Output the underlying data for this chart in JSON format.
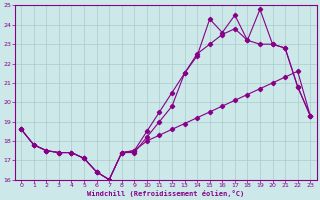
{
  "xlabel": "Windchill (Refroidissement éolien,°C)",
  "bg_color": "#cce8e8",
  "line_color": "#880088",
  "grid_color": "#aacccc",
  "xlim": [
    -0.5,
    23.5
  ],
  "ylim": [
    16,
    25
  ],
  "yticks": [
    16,
    17,
    18,
    19,
    20,
    21,
    22,
    23,
    24,
    25
  ],
  "xticks": [
    0,
    1,
    2,
    3,
    4,
    5,
    6,
    7,
    8,
    9,
    10,
    11,
    12,
    13,
    14,
    15,
    16,
    17,
    18,
    19,
    20,
    21,
    22,
    23
  ],
  "line1_x": [
    0,
    1,
    2,
    3,
    4,
    5,
    6,
    7,
    8,
    9,
    10,
    11,
    12,
    13,
    14,
    15,
    16,
    17,
    18,
    19,
    20,
    21,
    22,
    23
  ],
  "line1_y": [
    18.6,
    17.8,
    17.5,
    17.4,
    17.4,
    17.1,
    16.4,
    16.0,
    17.4,
    17.4,
    18.2,
    19.0,
    19.8,
    21.5,
    22.4,
    24.3,
    23.6,
    24.5,
    23.2,
    24.8,
    23.0,
    22.8,
    20.8,
    19.3
  ],
  "line2_x": [
    0,
    1,
    2,
    3,
    4,
    5,
    6,
    7,
    8,
    9,
    10,
    11,
    12,
    13,
    14,
    15,
    16,
    17,
    18,
    19,
    20,
    21,
    22,
    23
  ],
  "line2_y": [
    18.6,
    17.8,
    17.5,
    17.4,
    17.4,
    17.1,
    16.4,
    16.0,
    17.4,
    17.5,
    18.5,
    19.5,
    20.5,
    21.5,
    22.5,
    23.0,
    23.5,
    23.8,
    23.2,
    23.0,
    23.0,
    22.8,
    20.8,
    19.3
  ],
  "line3_x": [
    0,
    1,
    2,
    3,
    4,
    5,
    6,
    7,
    8,
    9,
    10,
    11,
    12,
    13,
    14,
    15,
    16,
    17,
    18,
    19,
    20,
    21,
    22,
    23
  ],
  "line3_y": [
    18.6,
    17.8,
    17.5,
    17.4,
    17.4,
    17.1,
    16.4,
    16.0,
    17.4,
    17.5,
    18.0,
    18.3,
    18.6,
    18.9,
    19.2,
    19.5,
    19.8,
    20.1,
    20.4,
    20.7,
    21.0,
    21.3,
    21.6,
    19.3
  ]
}
